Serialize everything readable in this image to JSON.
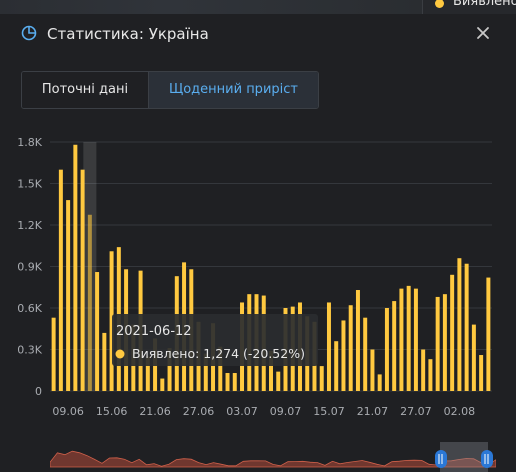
{
  "topbar": {
    "legend_label": "Виявлено",
    "legend_color": "#ffc940"
  },
  "header": {
    "title": "Статистика: Україна",
    "icon": "pie-chart-icon",
    "close_icon": "close-icon"
  },
  "tabs": [
    {
      "label": "Поточні дані",
      "active": false
    },
    {
      "label": "Щоденний приріст",
      "active": true
    }
  ],
  "tooltip": {
    "date": "2021-06-12",
    "label": "Виявлено: 1,274 (-20.52%)"
  },
  "colors": {
    "bar": "#ffc940",
    "accent": "#5aaef0",
    "background": "#1f2023",
    "grid": "#34373c"
  },
  "chart_data": {
    "type": "bar",
    "ylim": [
      0,
      1800
    ],
    "y_ticks": [
      {
        "value": 0,
        "label": "0"
      },
      {
        "value": 300,
        "label": "0.3K"
      },
      {
        "value": 600,
        "label": "0.6K"
      },
      {
        "value": 900,
        "label": "0.9K"
      },
      {
        "value": 1200,
        "label": "1.2K"
      },
      {
        "value": 1500,
        "label": "1.5K"
      },
      {
        "value": 1800,
        "label": "1.8K"
      }
    ],
    "x_ticks": [
      "09.06",
      "15.06",
      "21.06",
      "27.06",
      "03.07",
      "09.07",
      "15.07",
      "21.07",
      "27.07",
      "02.08"
    ],
    "x_tick_index": [
      2,
      8,
      14,
      20,
      26,
      32,
      38,
      44,
      50,
      56
    ],
    "series": [
      {
        "name": "Виявлено",
        "values": [
          530,
          1600,
          1380,
          1780,
          1600,
          1274,
          860,
          420,
          1010,
          1040,
          880,
          480,
          870,
          250,
          380,
          90,
          310,
          830,
          930,
          880,
          500,
          270,
          490,
          320,
          130,
          130,
          640,
          700,
          700,
          690,
          290,
          140,
          600,
          610,
          640,
          540,
          500,
          180,
          640,
          360,
          510,
          620,
          730,
          530,
          300,
          120,
          600,
          650,
          740,
          760,
          740,
          300,
          230,
          680,
          700,
          840,
          960,
          920,
          480,
          260,
          820
        ]
      }
    ],
    "highlight_index": 5
  }
}
